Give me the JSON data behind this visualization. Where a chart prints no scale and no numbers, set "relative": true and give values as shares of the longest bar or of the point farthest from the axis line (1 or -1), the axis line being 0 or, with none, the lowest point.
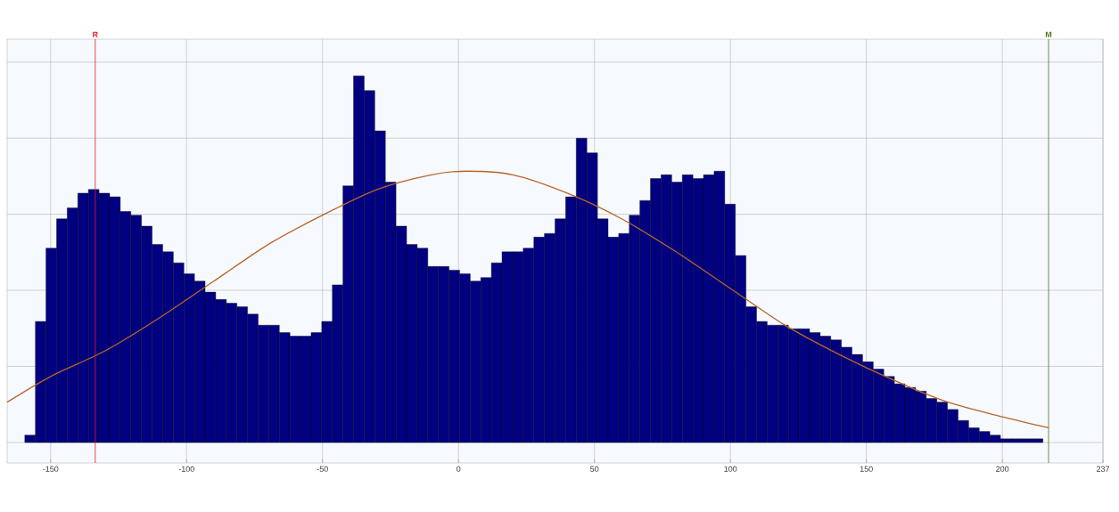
{
  "chart_data": {
    "type": "histogram",
    "relative": true,
    "bins": [
      -159.5,
      -155.6,
      -151.7,
      -147.8,
      -143.9,
      -140.0,
      -136.1,
      -132.2,
      -128.3,
      -124.4,
      -120.5,
      -116.6,
      -112.7,
      -108.8,
      -104.9,
      -101.0,
      -97.1,
      -93.2,
      -89.3,
      -85.4,
      -81.5,
      -77.6,
      -73.7,
      -69.8,
      -65.9,
      -62.0,
      -58.1,
      -54.2,
      -50.3,
      -46.4,
      -42.5,
      -38.6,
      -34.7,
      -30.8,
      -26.9,
      -23.0,
      -19.1,
      -15.2,
      -11.3,
      -7.4,
      -3.5,
      0.4,
      4.3,
      8.2,
      12.1,
      16.0,
      19.9,
      23.8,
      27.7,
      31.6,
      35.5,
      39.4,
      43.3,
      47.2,
      51.1,
      55.0,
      58.9,
      62.8,
      66.7,
      70.6,
      74.5,
      78.4,
      82.3,
      86.2,
      90.1,
      94.0,
      97.9,
      101.8,
      105.7,
      109.6,
      113.5,
      117.4,
      121.3,
      125.2,
      129.1,
      133.0,
      136.9,
      140.8,
      144.7,
      148.6,
      152.5,
      156.4,
      160.3,
      164.2,
      168.1,
      172.0,
      175.9,
      179.8,
      183.7,
      187.6,
      191.5,
      195.4,
      199.3,
      203.2,
      207.1,
      211.0,
      214.9
    ],
    "series": [
      {
        "color": "#000080",
        "values": [
          0.02,
          0.33,
          0.53,
          0.61,
          0.64,
          0.68,
          0.69,
          0.68,
          0.67,
          0.63,
          0.62,
          0.59,
          0.54,
          0.52,
          0.49,
          0.46,
          0.44,
          0.41,
          0.39,
          0.38,
          0.37,
          0.35,
          0.32,
          0.32,
          0.3,
          0.29,
          0.29,
          0.3,
          0.33,
          0.43,
          0.7,
          1,
          0.96,
          0.85,
          0.71,
          0.59,
          0.54,
          0.53,
          0.48,
          0.48,
          0.47,
          0.46,
          0.44,
          0.45,
          0.49,
          0.52,
          0.52,
          0.53,
          0.56,
          0.57,
          0.61,
          0.67,
          0.83,
          0.79,
          0.61,
          0.56,
          0.57,
          0.62,
          0.66,
          0.72,
          0.73,
          0.71,
          0.73,
          0.72,
          0.73,
          0.74,
          0.65,
          0.51,
          0.37,
          0.33,
          0.32,
          0.32,
          0.31,
          0.31,
          0.3,
          0.29,
          0.28,
          0.26,
          0.24,
          0.22,
          0.2,
          0.18,
          0.16,
          0.15,
          0.14,
          0.12,
          0.11,
          0.09,
          0.06,
          0.04,
          0.03,
          0.02,
          0.01,
          0.01,
          0.01,
          0.01
        ]
      },
      {
        "type": "line",
        "color": "#b8652a",
        "x": [
          -166,
          -150,
          -130,
          -110,
          -90,
          -70,
          -50,
          -30,
          -10,
          3,
          20,
          40,
          60,
          80,
          100,
          120,
          140,
          160,
          180,
          200,
          217
        ],
        "values": [
          0.11,
          0.18,
          0.25,
          0.34,
          0.44,
          0.54,
          0.62,
          0.69,
          0.73,
          0.74,
          0.73,
          0.68,
          0.61,
          0.52,
          0.42,
          0.32,
          0.24,
          0.17,
          0.11,
          0.07,
          0.04
        ]
      }
    ],
    "xlim": [
      -166,
      237
    ],
    "xticks": [
      -150,
      -100,
      -50,
      0,
      50,
      100,
      150,
      200,
      237
    ],
    "ref_lines": [
      {
        "axis": "x",
        "value": -133.6,
        "label": "R",
        "color": "#e02020"
      },
      {
        "axis": "x",
        "value": 217,
        "label": "M",
        "color": "#4a7a1a"
      }
    ],
    "grid": true,
    "tick_labels": "x"
  }
}
